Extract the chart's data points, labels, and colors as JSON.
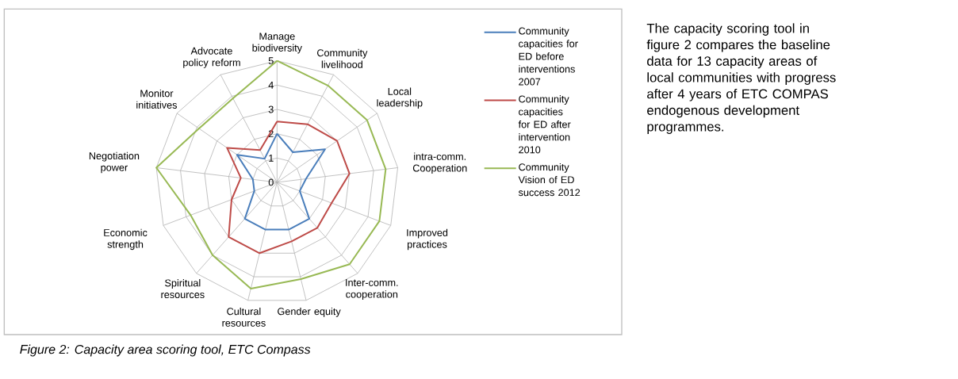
{
  "chart_data": {
    "type": "radar",
    "categories": [
      "Manage biodiversity",
      "Community livelihood",
      "Local leadership",
      "intra-comm. Cooperation",
      "Improved practices",
      "Inter-comm. cooperation",
      "Gender equity",
      "Cultural resources",
      "Spiritual resources",
      "Economic strength",
      "Negotiation power",
      "Monitor initiatives",
      "Advocate policy reform"
    ],
    "series": [
      {
        "name": "Community capacities for ED before interventions 2007",
        "color": "#4a7ebb",
        "values": [
          2,
          1.4,
          2.4,
          1.2,
          1,
          2,
          2,
          2,
          2,
          1,
          1,
          2,
          1.1
        ]
      },
      {
        "name": "Community capacities for ED after intervention 2010",
        "color": "#be4b48",
        "values": [
          2.5,
          2.7,
          3,
          3,
          2.4,
          2.5,
          2.5,
          3,
          3,
          2,
          1.5,
          2.5,
          1.5
        ]
      },
      {
        "name": "Community Vision of ED success 2012",
        "color": "#98b954",
        "values": [
          5,
          4.5,
          4.5,
          4.5,
          4.5,
          4.5,
          4.1,
          4.5,
          4,
          3.8,
          5,
          3.9,
          3.9
        ]
      }
    ],
    "ylim": [
      0,
      5
    ],
    "yticks": [
      0,
      1,
      2,
      3,
      4,
      5
    ],
    "grid": true,
    "legend": "right",
    "annotations": [
      "The capacity scoring tool in figure 2 compares the baseline data for 13 capacity areas of local communities with progress after 4 years of ETC COMPAS endogenous development programmes.",
      "*Figure 2: Capacity area scoring tool, ETC Compass*"
    ]
  }
}
